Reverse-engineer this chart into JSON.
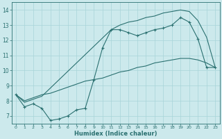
{
  "xlabel": "Humidex (Indice chaleur)",
  "background_color": "#cce9ec",
  "grid_color": "#a8d4d8",
  "line_color": "#2a7070",
  "xlim": [
    -0.5,
    23.5
  ],
  "ylim": [
    6.5,
    14.5
  ],
  "xticks": [
    0,
    1,
    2,
    3,
    4,
    5,
    6,
    7,
    8,
    9,
    10,
    11,
    12,
    13,
    14,
    15,
    16,
    17,
    18,
    19,
    20,
    21,
    22,
    23
  ],
  "yticks": [
    7,
    8,
    9,
    10,
    11,
    12,
    13,
    14
  ],
  "line1_x": [
    0,
    1,
    2,
    3,
    4,
    5,
    6,
    7,
    8,
    9,
    10,
    11,
    12,
    13,
    14,
    15,
    16,
    17,
    18,
    19,
    20,
    21,
    22,
    23
  ],
  "line1_y": [
    8.4,
    7.6,
    7.8,
    7.5,
    6.7,
    6.8,
    7.0,
    7.4,
    7.5,
    9.4,
    11.5,
    12.7,
    12.7,
    12.5,
    12.3,
    12.5,
    12.7,
    12.8,
    13.0,
    13.5,
    13.2,
    12.1,
    10.2,
    10.2
  ],
  "line2_x": [
    0,
    1,
    2,
    3,
    11,
    12,
    13,
    14,
    15,
    16,
    17,
    18,
    19,
    20,
    21,
    22,
    23
  ],
  "line2_y": [
    8.4,
    7.9,
    8.1,
    8.3,
    12.7,
    13.0,
    13.2,
    13.3,
    13.5,
    13.6,
    13.8,
    13.9,
    14.0,
    13.9,
    13.3,
    12.2,
    10.2
  ],
  "line3_x": [
    0,
    1,
    2,
    3,
    4,
    5,
    6,
    7,
    8,
    9,
    10,
    11,
    12,
    13,
    14,
    15,
    16,
    17,
    18,
    19,
    20,
    21,
    22,
    23
  ],
  "line3_y": [
    8.4,
    8.0,
    8.2,
    8.4,
    8.5,
    8.7,
    8.9,
    9.1,
    9.3,
    9.4,
    9.5,
    9.7,
    9.9,
    10.0,
    10.2,
    10.3,
    10.5,
    10.6,
    10.7,
    10.8,
    10.8,
    10.7,
    10.5,
    10.2
  ]
}
